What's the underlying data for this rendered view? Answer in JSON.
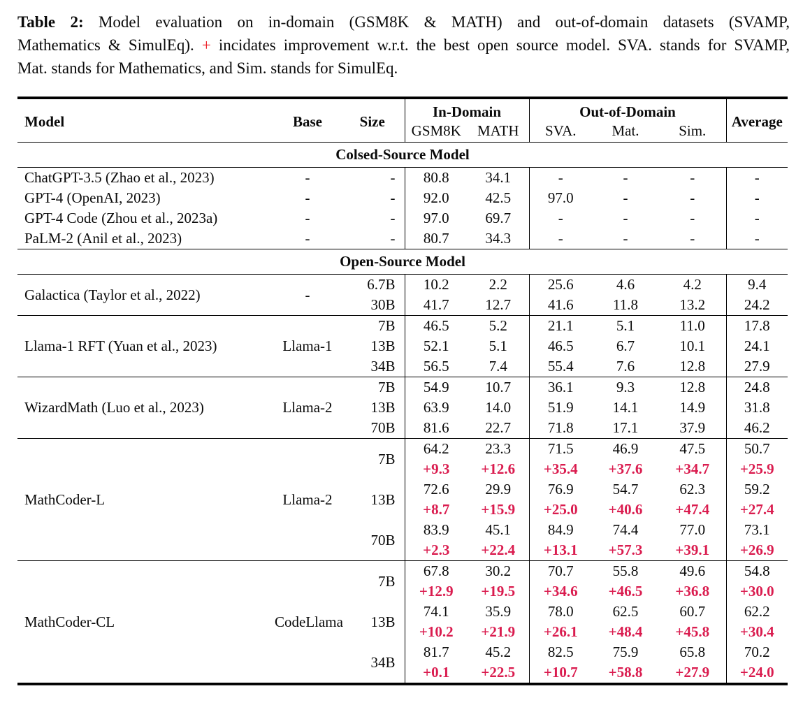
{
  "caption": {
    "label": "Table 2:",
    "line1_rest": " Model evaluation on in-domain (GSM8K & MATH) and out-of-domain datasets (SVAMP,",
    "line2_before_plus": "Mathematics & SimulEq). ",
    "plus": "+",
    "line2_after_plus": " incidates improvement w.r.t. the best open source model. SVA. stands for SVAMP,",
    "line3": "Mat. stands for Mathematics, and Sim. stands for SimulEq."
  },
  "colors": {
    "delta_red": "#da1c4f",
    "caption_plus_red": "#ec1b23"
  },
  "table": {
    "header": {
      "model": "Model",
      "base": "Base",
      "size": "Size",
      "in_domain": "In-Domain",
      "out_of_domain": "Out-of-Domain",
      "gsm8k": "GSM8K",
      "math": "MATH",
      "sva": "SVA.",
      "mat": "Mat.",
      "sim": "Sim.",
      "average": "Average"
    },
    "value_columns": [
      "GSM8K",
      "MATH",
      "SVA.",
      "Mat.",
      "Sim.",
      "Average"
    ],
    "sections": [
      {
        "title": "Colsed-Source Model",
        "dividers": false,
        "groups": [
          {
            "model": "ChatGPT-3.5 (Zhao et al., 2023)",
            "base": "-",
            "rows": [
              {
                "size": "-",
                "values": [
                  "80.8",
                  "34.1",
                  "-",
                  "-",
                  "-",
                  "-"
                ]
              }
            ]
          },
          {
            "model": "GPT-4 (OpenAI, 2023)",
            "base": "-",
            "rows": [
              {
                "size": "-",
                "values": [
                  "92.0",
                  "42.5",
                  "97.0",
                  "-",
                  "-",
                  "-"
                ]
              }
            ]
          },
          {
            "model": "GPT-4 Code (Zhou et al., 2023a)",
            "base": "-",
            "rows": [
              {
                "size": "-",
                "values": [
                  "97.0",
                  "69.7",
                  "-",
                  "-",
                  "-",
                  "-"
                ]
              }
            ]
          },
          {
            "model": "PaLM-2 (Anil et al., 2023)",
            "base": "-",
            "rows": [
              {
                "size": "-",
                "values": [
                  "80.7",
                  "34.3",
                  "-",
                  "-",
                  "-",
                  "-"
                ]
              }
            ]
          }
        ]
      },
      {
        "title": "Open-Source Model",
        "dividers": true,
        "groups": [
          {
            "model": "Galactica (Taylor et al., 2022)",
            "base": "-",
            "rows": [
              {
                "size": "6.7B",
                "values": [
                  "10.2",
                  "2.2",
                  "25.6",
                  "4.6",
                  "4.2",
                  "9.4"
                ]
              },
              {
                "size": "30B",
                "values": [
                  "41.7",
                  "12.7",
                  "41.6",
                  "11.8",
                  "13.2",
                  "24.2"
                ]
              }
            ]
          },
          {
            "model": "Llama-1 RFT (Yuan et al., 2023)",
            "base": "Llama-1",
            "rows": [
              {
                "size": "7B",
                "values": [
                  "46.5",
                  "5.2",
                  "21.1",
                  "5.1",
                  "11.0",
                  "17.8"
                ]
              },
              {
                "size": "13B",
                "values": [
                  "52.1",
                  "5.1",
                  "46.5",
                  "6.7",
                  "10.1",
                  "24.1"
                ]
              },
              {
                "size": "34B",
                "values": [
                  "56.5",
                  "7.4",
                  "55.4",
                  "7.6",
                  "12.8",
                  "27.9"
                ]
              }
            ]
          },
          {
            "model": "WizardMath (Luo et al., 2023)",
            "base": "Llama-2",
            "rows": [
              {
                "size": "7B",
                "values": [
                  "54.9",
                  "10.7",
                  "36.1",
                  "9.3",
                  "12.8",
                  "24.8"
                ]
              },
              {
                "size": "13B",
                "values": [
                  "63.9",
                  "14.0",
                  "51.9",
                  "14.1",
                  "14.9",
                  "31.8"
                ]
              },
              {
                "size": "70B",
                "values": [
                  "81.6",
                  "22.7",
                  "71.8",
                  "17.1",
                  "37.9",
                  "46.2"
                ]
              }
            ]
          },
          {
            "model": "MathCoder-L",
            "base": "Llama-2",
            "rows": [
              {
                "size": "7B",
                "values": [
                  "64.2",
                  "23.3",
                  "71.5",
                  "46.9",
                  "47.5",
                  "50.7"
                ],
                "delta": [
                  "+9.3",
                  "+12.6",
                  "+35.4",
                  "+37.6",
                  "+34.7",
                  "+25.9"
                ]
              },
              {
                "size": "13B",
                "values": [
                  "72.6",
                  "29.9",
                  "76.9",
                  "54.7",
                  "62.3",
                  "59.2"
                ],
                "delta": [
                  "+8.7",
                  "+15.9",
                  "+25.0",
                  "+40.6",
                  "+47.4",
                  "+27.4"
                ]
              },
              {
                "size": "70B",
                "values": [
                  "83.9",
                  "45.1",
                  "84.9",
                  "74.4",
                  "77.0",
                  "73.1"
                ],
                "delta": [
                  "+2.3",
                  "+22.4",
                  "+13.1",
                  "+57.3",
                  "+39.1",
                  "+26.9"
                ]
              }
            ]
          },
          {
            "model": "MathCoder-CL",
            "base": "CodeLlama",
            "rows": [
              {
                "size": "7B",
                "values": [
                  "67.8",
                  "30.2",
                  "70.7",
                  "55.8",
                  "49.6",
                  "54.8"
                ],
                "delta": [
                  "+12.9",
                  "+19.5",
                  "+34.6",
                  "+46.5",
                  "+36.8",
                  "+30.0"
                ]
              },
              {
                "size": "13B",
                "values": [
                  "74.1",
                  "35.9",
                  "78.0",
                  "62.5",
                  "60.7",
                  "62.2"
                ],
                "delta": [
                  "+10.2",
                  "+21.9",
                  "+26.1",
                  "+48.4",
                  "+45.8",
                  "+30.4"
                ]
              },
              {
                "size": "34B",
                "values": [
                  "81.7",
                  "45.2",
                  "82.5",
                  "75.9",
                  "65.8",
                  "70.2"
                ],
                "delta": [
                  "+0.1",
                  "+22.5",
                  "+10.7",
                  "+58.8",
                  "+27.9",
                  "+24.0"
                ]
              }
            ]
          }
        ]
      }
    ]
  }
}
